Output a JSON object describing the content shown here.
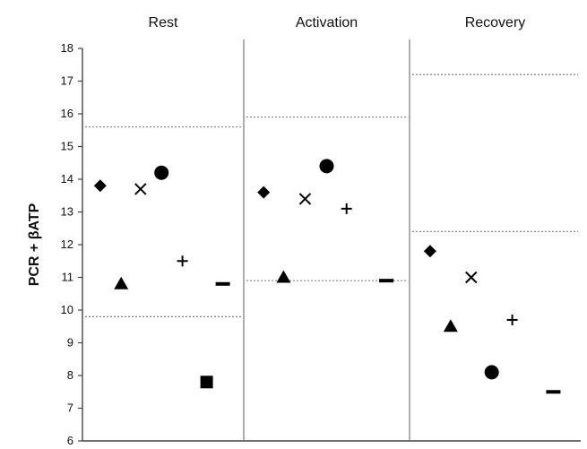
{
  "chart_data": {
    "type": "scatter",
    "ylabel": "PCR + βATP",
    "ylim": [
      6,
      18
    ],
    "yticks": [
      6,
      7,
      8,
      9,
      10,
      11,
      12,
      13,
      14,
      15,
      16,
      17,
      18
    ],
    "grid": false,
    "panels": [
      {
        "name": "Rest",
        "reference_lines": [
          15.6,
          9.8
        ],
        "points": [
          {
            "marker": "diamond",
            "y": 13.8
          },
          {
            "marker": "triangle",
            "y": 10.8
          },
          {
            "marker": "cross",
            "y": 13.7
          },
          {
            "marker": "circle",
            "y": 14.2
          },
          {
            "marker": "plus",
            "y": 11.5
          },
          {
            "marker": "square",
            "y": 7.8
          },
          {
            "marker": "dash",
            "y": 10.8
          }
        ]
      },
      {
        "name": "Activation",
        "reference_lines": [
          15.9,
          10.9
        ],
        "points": [
          {
            "marker": "diamond",
            "y": 13.6
          },
          {
            "marker": "triangle",
            "y": 11.0
          },
          {
            "marker": "cross",
            "y": 13.4
          },
          {
            "marker": "circle",
            "y": 14.4
          },
          {
            "marker": "plus",
            "y": 13.1
          },
          {
            "marker": "dash",
            "y": 10.9
          }
        ]
      },
      {
        "name": "Recovery",
        "reference_lines": [
          17.2,
          12.4
        ],
        "points": [
          {
            "marker": "diamond",
            "y": 11.8
          },
          {
            "marker": "triangle",
            "y": 9.5
          },
          {
            "marker": "cross",
            "y": 11.0
          },
          {
            "marker": "circle",
            "y": 8.1
          },
          {
            "marker": "plus",
            "y": 9.7
          },
          {
            "marker": "dash",
            "y": 7.5
          }
        ]
      }
    ]
  },
  "colors": {
    "marker": "#000000",
    "axis": "#444444",
    "divider": "#777777",
    "reference_line": "#8a8a8a",
    "text": "#111111"
  }
}
